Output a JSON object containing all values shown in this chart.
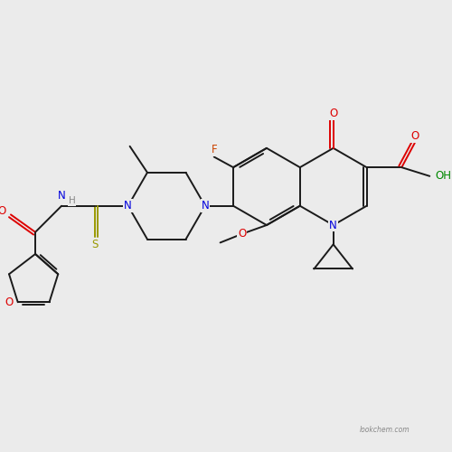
{
  "background_color": "#ebebeb",
  "fig_width": 5.0,
  "fig_height": 5.0,
  "dpi": 100,
  "watermark": "lookchem.com",
  "bond_color": "#1a1a1a",
  "bond_lw": 1.4,
  "font_size": 8.5,
  "colors": {
    "N": "#0000dd",
    "O": "#dd0000",
    "F": "#cc4400",
    "S": "#999900",
    "OH": "#008800",
    "H": "#888888"
  }
}
